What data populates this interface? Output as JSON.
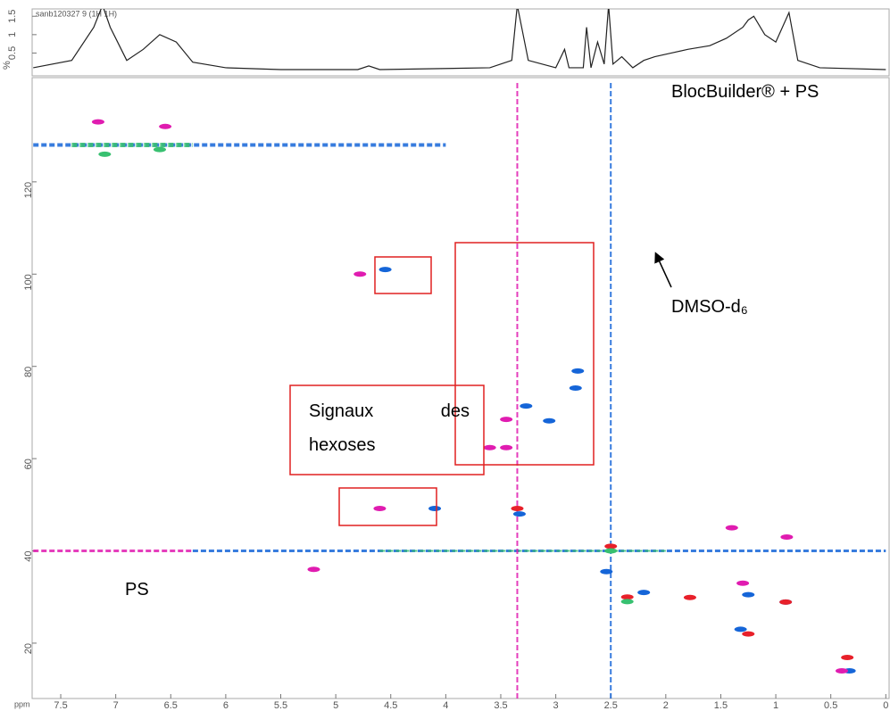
{
  "chart_data": [
    {
      "type": "line",
      "title": "sanb120327 9 (1H 1H)",
      "ylabel": "%",
      "xlim": [
        7.76,
        -0.03
      ],
      "ylim": [
        -0.12,
        1.7
      ],
      "yticks": [
        0.5,
        1,
        1.5
      ],
      "color": "#222222",
      "x": [
        7.75,
        7.4,
        7.2,
        7.12,
        7.05,
        6.9,
        6.75,
        6.6,
        6.45,
        6.3,
        6.0,
        5.5,
        4.8,
        4.7,
        4.6,
        3.6,
        3.4,
        3.35,
        3.25,
        3.0,
        2.92,
        2.88,
        2.75,
        2.72,
        2.68,
        2.62,
        2.56,
        2.52,
        2.48,
        2.4,
        2.3,
        2.2,
        2.1,
        1.95,
        1.8,
        1.6,
        1.45,
        1.3,
        1.25,
        1.2,
        1.1,
        1.0,
        0.88,
        0.8,
        0.6,
        0.0
      ],
      "values": [
        0.1,
        0.3,
        1.2,
        1.8,
        1.2,
        0.3,
        0.6,
        1.0,
        0.8,
        0.25,
        0.1,
        0.05,
        0.05,
        0.15,
        0.05,
        0.1,
        0.3,
        1.8,
        0.3,
        0.1,
        0.6,
        0.1,
        0.1,
        1.2,
        0.1,
        0.8,
        0.2,
        1.8,
        0.2,
        0.4,
        0.1,
        0.3,
        0.4,
        0.5,
        0.6,
        0.7,
        0.9,
        1.2,
        1.4,
        1.5,
        1.0,
        0.8,
        1.6,
        0.3,
        0.1,
        0.05
      ]
    },
    {
      "type": "scatter",
      "xlabel": "ppm",
      "xlim": [
        7.76,
        -0.03
      ],
      "ylim": [
        8,
        142.6
      ],
      "xticks": [
        7.5,
        7,
        6.5,
        6,
        5.5,
        5,
        4.5,
        4,
        3.5,
        3,
        2.5,
        2,
        1.5,
        1,
        0.5,
        0
      ],
      "yticks": [
        20,
        40,
        60,
        80,
        100,
        120
      ],
      "annotations": [
        "BlocBuilder® + PS",
        "DMSO-d₆",
        "Signaux des hexoses",
        "PS"
      ],
      "series": [
        {
          "style": "line",
          "line_width": 3,
          "color": "#e01cb0",
          "x": [
            7.75,
            6.3
          ],
          "values": [
            40,
            40
          ]
        },
        {
          "style": "line",
          "line_width": 3,
          "color": "#1565d8",
          "x": [
            6.3,
            0
          ],
          "values": [
            40,
            40
          ]
        },
        {
          "style": "line",
          "line_width": 2,
          "color": "#38c070",
          "x": [
            4.6,
            2.0
          ],
          "values": [
            40,
            40
          ]
        },
        {
          "style": "line",
          "line_width": 2,
          "color": "#1565d8",
          "x": [
            2.5,
            2.5
          ],
          "values": [
            8,
            142
          ]
        },
        {
          "style": "line",
          "line_width": 2,
          "color": "#e01cb0",
          "x": [
            3.35,
            3.35
          ],
          "values": [
            8,
            142
          ]
        },
        {
          "style": "line",
          "line_width": 4,
          "color": "#1565d8",
          "x": [
            7.75,
            4.0
          ],
          "values": [
            128,
            128
          ]
        },
        {
          "style": "line",
          "line_width": 5,
          "color": "#38c070",
          "x": [
            7.4,
            6.3
          ],
          "values": [
            128,
            128
          ]
        },
        {
          "style": "points",
          "color": "#1565d8",
          "x": [
            0.33,
            1.32,
            0.91,
            2.54,
            4.1,
            3.06,
            3.27,
            2.82,
            2.8,
            4.55,
            3.33,
            1.25,
            2.2
          ],
          "values": [
            14,
            23,
            28.9,
            35.5,
            49.2,
            68.2,
            71.4,
            75.3,
            79,
            101,
            48,
            30.5,
            31
          ]
        },
        {
          "style": "points",
          "color": "#e01cb0",
          "x": [
            0.4,
            4.6,
            3.45,
            3.6,
            3.45,
            4.78,
            7.16,
            6.55,
            1.3,
            0.9,
            5.2,
            1.4
          ],
          "values": [
            14,
            49.2,
            62.4,
            62.4,
            68.5,
            100,
            133,
            132,
            33,
            43,
            36,
            45
          ]
        },
        {
          "style": "points",
          "color": "#e8202a",
          "x": [
            0.35,
            1.25,
            1.78,
            3.35,
            2.5,
            0.91,
            2.35
          ],
          "values": [
            16.9,
            22,
            29.9,
            49.2,
            41,
            28.9,
            30
          ]
        },
        {
          "style": "points",
          "color": "#38c070",
          "x": [
            2.35,
            2.5,
            7.1,
            6.6
          ],
          "values": [
            29,
            40,
            126,
            127
          ]
        }
      ]
    }
  ]
}
